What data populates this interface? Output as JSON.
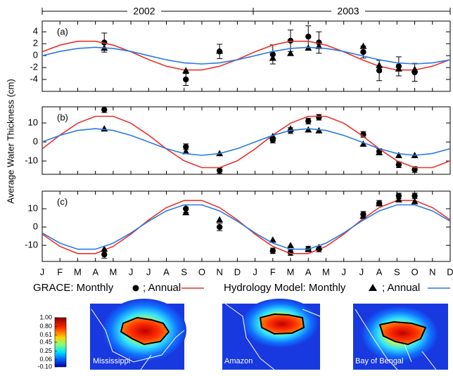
{
  "years": [
    "2002",
    "2003"
  ],
  "legend": [
    "GRACE: Monthly",
    "; Annual",
    "Hydrology Model: Monthly",
    "; Annual"
  ],
  "maps": [
    {
      "label": "Mississippi"
    },
    {
      "label": "Amazon"
    },
    {
      "label": "Bay of Bengal"
    }
  ],
  "chart_data": [
    {
      "type": "line",
      "title": "(a)",
      "xlim": [
        0,
        23
      ],
      "ylim": [
        -6,
        5.8
      ],
      "yticks": [
        -4,
        -2,
        0,
        2,
        4
      ],
      "series": [
        {
          "marker": "circle",
          "color": "#000000",
          "x": [
            3.5,
            8.1,
            10,
            13,
            14,
            15,
            15.6,
            18.1,
            19,
            20.1,
            21
          ],
          "values": [
            2.2,
            -4,
            0.7,
            0.2,
            2.5,
            3.2,
            2.2,
            0.6,
            -2.5,
            -1.8,
            -2.8
          ],
          "errors": [
            1.6,
            1,
            1.2,
            1.6,
            1.8,
            1.8,
            1.8,
            1,
            1.7,
            1.6,
            1.5
          ]
        },
        {
          "color": "#e8322a",
          "x": [
            0,
            1,
            2,
            3,
            4,
            5,
            6,
            7,
            8,
            9,
            10,
            11,
            12,
            13,
            14,
            15,
            16,
            17,
            18,
            19,
            20,
            21,
            22,
            23
          ],
          "values": [
            0.65,
            1.77,
            2.41,
            2.41,
            1.77,
            0.65,
            -0.65,
            -1.77,
            -2.41,
            -2.41,
            -1.77,
            -0.65,
            0.65,
            1.77,
            2.41,
            2.41,
            1.77,
            0.65,
            -0.65,
            -1.77,
            -2.41,
            -2.41,
            -1.77,
            -0.65
          ]
        },
        {
          "marker": "triangle",
          "color": "#000000",
          "x": [
            3.5,
            8.1,
            10,
            13,
            14,
            15,
            15.6,
            18.1,
            19,
            20.1,
            21
          ],
          "values": [
            1.3,
            -2.5,
            0.8,
            -0.4,
            0.4,
            1.3,
            1.6,
            1.6,
            -1.6,
            -2.2,
            -2.3
          ]
        },
        {
          "color": "#2a7ae2",
          "x": [
            0,
            1,
            2,
            3,
            4,
            5,
            6,
            7,
            8,
            9,
            10,
            11,
            12,
            13,
            14,
            15,
            16,
            17,
            18,
            19,
            20,
            21,
            22,
            23
          ],
          "values": [
            0,
            0.7,
            1.21,
            1.4,
            1.21,
            0.7,
            0,
            -0.7,
            -1.21,
            -1.4,
            -1.21,
            -0.7,
            0,
            0.7,
            1.21,
            1.4,
            1.21,
            0.7,
            0,
            -0.7,
            -1.21,
            -1.4,
            -1.21,
            -0.7
          ]
        }
      ]
    },
    {
      "type": "line",
      "title": "(b)",
      "ylabel": "Average Water Thickness (cm)",
      "xlim": [
        0,
        23
      ],
      "ylim": [
        -17,
        18.5
      ],
      "yticks": [
        -10,
        0,
        10
      ],
      "series": [
        {
          "marker": "circle",
          "color": "#000000",
          "x": [
            3.5,
            8.1,
            10,
            13,
            14,
            15,
            15.6,
            18.1,
            19,
            20.1,
            21
          ],
          "values": [
            17,
            -2.5,
            -15,
            1,
            6,
            11,
            13,
            4,
            -5,
            -12,
            -14.5
          ],
          "errors": [
            1.5,
            1.5,
            1.5,
            1.5,
            1.5,
            1.5,
            1.5,
            1.5,
            1.5,
            1.5,
            1.5
          ]
        },
        {
          "color": "#e8322a",
          "x": [
            0,
            1,
            2,
            3,
            4,
            5,
            6,
            7,
            8,
            9,
            10,
            11,
            12,
            13,
            14,
            15,
            16,
            17,
            18,
            19,
            20,
            21,
            22,
            23
          ],
          "values": [
            -3.6,
            3.6,
            9.9,
            13.5,
            13.5,
            9.9,
            3.6,
            -3.6,
            -9.9,
            -13.5,
            -13.5,
            -9.9,
            -3.6,
            3.6,
            9.9,
            13.5,
            13.5,
            9.9,
            3.6,
            -3.6,
            -9.9,
            -13.5,
            -13.5,
            -9.9
          ]
        },
        {
          "marker": "triangle",
          "color": "#000000",
          "x": [
            3.5,
            8.1,
            10,
            13,
            14,
            15,
            15.6,
            18.1,
            19,
            20.1,
            21
          ],
          "values": [
            7,
            -5,
            -6,
            3,
            7,
            6.5,
            6,
            -1,
            -5.5,
            -7,
            -7
          ]
        },
        {
          "color": "#2a7ae2",
          "x": [
            0,
            1,
            2,
            3,
            4,
            5,
            6,
            7,
            8,
            9,
            10,
            11,
            12,
            13,
            14,
            15,
            16,
            17,
            18,
            19,
            20,
            21,
            22,
            23
          ],
          "values": [
            0,
            3.5,
            6.06,
            7,
            6.06,
            3.5,
            0,
            -3.5,
            -6.06,
            -7,
            -6.06,
            -3.5,
            0,
            3.5,
            6.06,
            7,
            6.06,
            3.5,
            0,
            -3.5,
            -6.06,
            -7,
            -6.06,
            -3.5
          ]
        }
      ]
    },
    {
      "type": "line",
      "title": "(c)",
      "xlim": [
        0,
        23
      ],
      "ylim": [
        -18.8,
        19.6
      ],
      "yticks": [
        -10,
        0,
        10
      ],
      "xticks": [
        {
          "value": 0,
          "label": "J"
        },
        {
          "value": 1,
          "label": "F"
        },
        {
          "value": 2,
          "label": "M"
        },
        {
          "value": 3,
          "label": "A"
        },
        {
          "value": 4,
          "label": "M"
        },
        {
          "value": 5,
          "label": "J"
        },
        {
          "value": 6,
          "label": "J"
        },
        {
          "value": 7,
          "label": "A"
        },
        {
          "value": 8,
          "label": "S"
        },
        {
          "value": 9,
          "label": "O"
        },
        {
          "value": 10,
          "label": "N"
        },
        {
          "value": 11,
          "label": "D"
        },
        {
          "value": 12,
          "label": "J"
        },
        {
          "value": 13,
          "label": "F"
        },
        {
          "value": 14,
          "label": "M"
        },
        {
          "value": 15,
          "label": "A"
        },
        {
          "value": 16,
          "label": "M"
        },
        {
          "value": 17,
          "label": "J"
        },
        {
          "value": 18,
          "label": "J"
        },
        {
          "value": 19,
          "label": "A"
        },
        {
          "value": 20,
          "label": "S"
        },
        {
          "value": 21,
          "label": "O"
        },
        {
          "value": 22,
          "label": "N"
        },
        {
          "value": 23,
          "label": "D"
        }
      ],
      "series": [
        {
          "marker": "circle",
          "color": "#000000",
          "x": [
            3.5,
            8.1,
            10,
            13,
            14,
            15,
            15.6,
            18.1,
            19,
            20.1,
            21
          ],
          "values": [
            -15,
            10,
            0,
            -13,
            -14,
            -12,
            -12,
            7,
            13,
            17,
            17
          ],
          "errors": [
            2,
            2,
            2,
            1.5,
            1.5,
            1.5,
            1.5,
            1.5,
            1.5,
            1.5,
            1.5
          ]
        },
        {
          "color": "#e8322a",
          "x": [
            0,
            1,
            2,
            3,
            4,
            5,
            6,
            7,
            8,
            9,
            10,
            11,
            12,
            13,
            14,
            15,
            16,
            17,
            18,
            19,
            20,
            21,
            22,
            23
          ],
          "values": [
            -3.9,
            -10.6,
            -14.5,
            -14.5,
            -10.6,
            -3.9,
            3.9,
            10.6,
            14.5,
            14.5,
            10.6,
            3.9,
            -3.9,
            -10.6,
            -14.5,
            -14.5,
            -10.6,
            -3.9,
            3.9,
            10.6,
            14.5,
            14.5,
            10.6,
            3.9
          ]
        },
        {
          "marker": "triangle",
          "color": "#000000",
          "x": [
            3.5,
            8.1,
            10,
            13,
            14,
            15,
            15.6,
            18.1,
            19,
            20.1,
            21
          ],
          "values": [
            -12,
            8,
            4,
            -7,
            -10,
            -12,
            -11,
            6,
            13,
            15,
            14
          ]
        },
        {
          "color": "#2a7ae2",
          "x": [
            0,
            1,
            2,
            3,
            4,
            5,
            6,
            7,
            8,
            9,
            10,
            11,
            12,
            13,
            14,
            15,
            16,
            17,
            18,
            19,
            20,
            21,
            22,
            23
          ],
          "values": [
            -3.2,
            -8.8,
            -12.1,
            -12.1,
            -8.8,
            -3.2,
            3.2,
            8.8,
            12.1,
            12.1,
            8.8,
            3.2,
            -3.2,
            -8.8,
            -12.1,
            -12.1,
            -8.8,
            -3.2,
            3.2,
            8.8,
            12.1,
            12.1,
            8.8,
            3.2
          ]
        }
      ]
    },
    {
      "type": "colorbar",
      "ylim": [
        -0.1,
        1
      ],
      "yticks": [
        {
          "value": 1,
          "label": "1.00"
        },
        {
          "value": 0.8,
          "label": "0.80"
        },
        0.61,
        0.45,
        0.25,
        0.06,
        {
          "value": -0.1,
          "label": "-0.10"
        }
      ]
    }
  ]
}
